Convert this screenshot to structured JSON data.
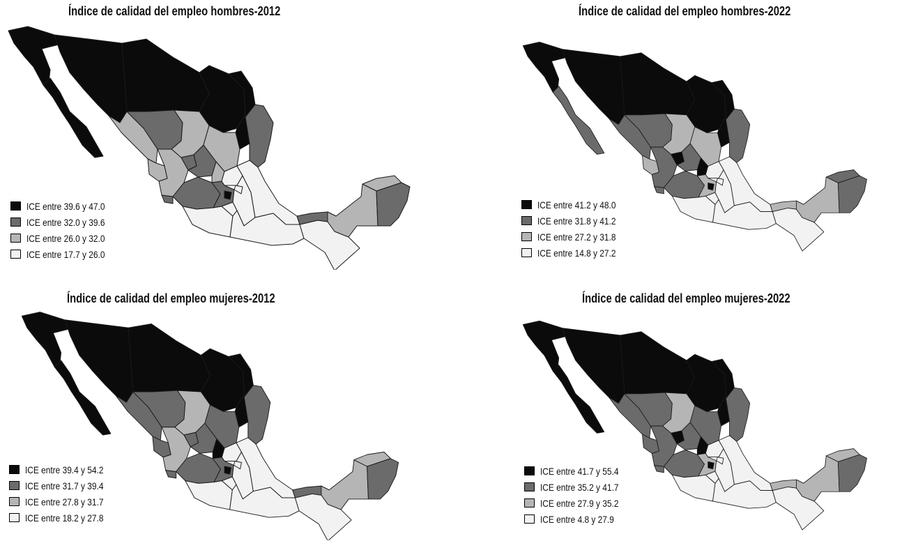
{
  "colors": {
    "c1": "#0b0b0b",
    "c2": "#6b6b6b",
    "c3": "#b5b5b5",
    "c4": "#f2f2f2",
    "border": "#1a1a1a"
  },
  "maps": [
    {
      "title": "Índice de calidad del empleo hombres-2012",
      "legend": [
        "ICE entre 39.6 y 47.0",
        "ICE entre 32.0 y 39.6",
        "ICE entre 26.0 y 32.0",
        "ICE entre 17.7 y 26.0"
      ],
      "regions": {
        "bc": 1,
        "bcs": 1,
        "son": 1,
        "chih": 1,
        "coah": 1,
        "nl": 1,
        "tamps": 2,
        "sin": 3,
        "dgo": 2,
        "zac": 3,
        "sl": 3,
        "nay": 3,
        "jal": 3,
        "ags": 2,
        "gto": 2,
        "qro": 3,
        "hgo": 4,
        "mich": 2,
        "mex": 2,
        "cdmx": 1,
        "col": 2,
        "gro": 4,
        "mor": 4,
        "pue": 4,
        "tlax": 4,
        "ver": 4,
        "oax": 4,
        "chis": 4,
        "tab": 2,
        "camp": 3,
        "yuc": 3,
        "qroo": 2
      }
    },
    {
      "title": "Índice de calidad del empleo hombres-2022",
      "legend": [
        "ICE entre 41.2 y 48.0",
        "ICE entre 31.8 y 41.2",
        "ICE entre 27.2 y 31.8",
        "ICE entre 14.8 y 27.2"
      ],
      "regions": {
        "bc": 1,
        "bcs": 2,
        "son": 1,
        "chih": 1,
        "coah": 1,
        "nl": 1,
        "tamps": 2,
        "sin": 2,
        "dgo": 2,
        "zac": 3,
        "sl": 3,
        "nay": 3,
        "jal": 2,
        "ags": 1,
        "gto": 2,
        "qro": 1,
        "hgo": 4,
        "mich": 2,
        "mex": 3,
        "cdmx": 1,
        "col": 2,
        "gro": 4,
        "mor": 4,
        "pue": 4,
        "tlax": 4,
        "ver": 4,
        "oax": 4,
        "chis": 4,
        "tab": 3,
        "camp": 3,
        "yuc": 2,
        "qroo": 2
      }
    },
    {
      "title": "Índice de calidad del empleo mujeres-2012",
      "legend": [
        "ICE entre 39.4 y 54.2",
        "ICE entre 31.7 y 39.4",
        "ICE entre 27.8 y 31.7",
        "ICE entre 18.2 y 27.8"
      ],
      "regions": {
        "bc": 1,
        "bcs": 1,
        "son": 1,
        "chih": 1,
        "coah": 1,
        "nl": 1,
        "tamps": 2,
        "sin": 2,
        "dgo": 2,
        "zac": 3,
        "sl": 2,
        "nay": 2,
        "jal": 3,
        "ags": 2,
        "gto": 2,
        "qro": 1,
        "hgo": 4,
        "mich": 2,
        "mex": 2,
        "cdmx": 1,
        "col": 2,
        "gro": 4,
        "mor": 4,
        "pue": 4,
        "tlax": 4,
        "ver": 4,
        "oax": 4,
        "chis": 4,
        "tab": 2,
        "camp": 3,
        "yuc": 3,
        "qroo": 2
      }
    },
    {
      "title": "Índice de calidad del empleo mujeres-2022",
      "legend": [
        "ICE entre 41.7 y 55.4",
        "ICE entre 35.2 y 41.7",
        "ICE entre 27.9 y 35.2",
        "ICE entre 4.8 y 27.9"
      ],
      "regions": {
        "bc": 1,
        "bcs": 1,
        "son": 1,
        "chih": 1,
        "coah": 1,
        "nl": 1,
        "tamps": 2,
        "sin": 2,
        "dgo": 2,
        "zac": 3,
        "sl": 2,
        "nay": 2,
        "jal": 2,
        "ags": 1,
        "gto": 2,
        "qro": 1,
        "hgo": 4,
        "mich": 2,
        "mex": 3,
        "cdmx": 1,
        "col": 2,
        "gro": 4,
        "mor": 4,
        "pue": 4,
        "tlax": 4,
        "ver": 4,
        "oax": 4,
        "chis": 4,
        "tab": 3,
        "camp": 3,
        "yuc": 3,
        "qroo": 2
      }
    }
  ]
}
